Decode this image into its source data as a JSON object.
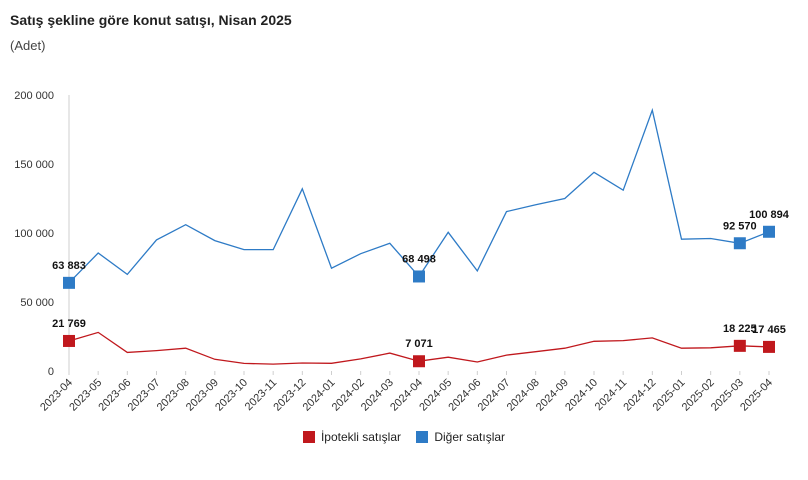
{
  "header": {
    "title": "Satış şekline göre konut satışı, Nisan 2025",
    "subtitle": "(Adet)"
  },
  "chart_data": {
    "type": "line",
    "title": "Satış şekline göre konut satışı, Nisan 2025",
    "subtitle": "(Adet)",
    "xlabel": "",
    "ylabel": "",
    "ylim": [
      0,
      200000
    ],
    "yticks": [
      0,
      50000,
      100000,
      150000,
      200000
    ],
    "ytick_labels": [
      "0",
      "50 000",
      "100 000",
      "150 000",
      "200 000"
    ],
    "grid": false,
    "legend_position": "bottom",
    "categories": [
      "2023-04",
      "2023-05",
      "2023-06",
      "2023-07",
      "2023-08",
      "2023-09",
      "2023-10",
      "2023-11",
      "2023-12",
      "2024-01",
      "2024-02",
      "2024-03",
      "2024-04",
      "2024-05",
      "2024-06",
      "2024-07",
      "2024-08",
      "2024-09",
      "2024-10",
      "2024-11",
      "2024-12",
      "2025-01",
      "2025-02",
      "2025-03",
      "2025-04"
    ],
    "series": [
      {
        "name": "İpotekli satışlar",
        "color": "#c0181d",
        "values": [
          21769,
          28000,
          13500,
          14800,
          16500,
          8500,
          5500,
          5000,
          5800,
          5600,
          8800,
          13000,
          7071,
          10000,
          6500,
          11500,
          14000,
          16500,
          21500,
          22000,
          24000,
          16500,
          16800,
          18225,
          17465
        ],
        "markers": [
          {
            "index": 0,
            "label": "21 769"
          },
          {
            "index": 12,
            "label": "7 071"
          },
          {
            "index": 23,
            "label": "18 225"
          },
          {
            "index": 24,
            "label": "17 465"
          }
        ]
      },
      {
        "name": "Diğer satışlar",
        "color": "#2e7bc6",
        "values": [
          63883,
          85500,
          70000,
          95000,
          106000,
          94500,
          88000,
          88000,
          132000,
          74500,
          85000,
          92500,
          68498,
          100500,
          72500,
          115500,
          120500,
          125000,
          144000,
          131000,
          189000,
          95500,
          96000,
          92570,
          100894
        ],
        "markers": [
          {
            "index": 0,
            "label": "63 883"
          },
          {
            "index": 12,
            "label": "68 498"
          },
          {
            "index": 23,
            "label": "92 570"
          },
          {
            "index": 24,
            "label": "100 894"
          }
        ]
      }
    ]
  }
}
